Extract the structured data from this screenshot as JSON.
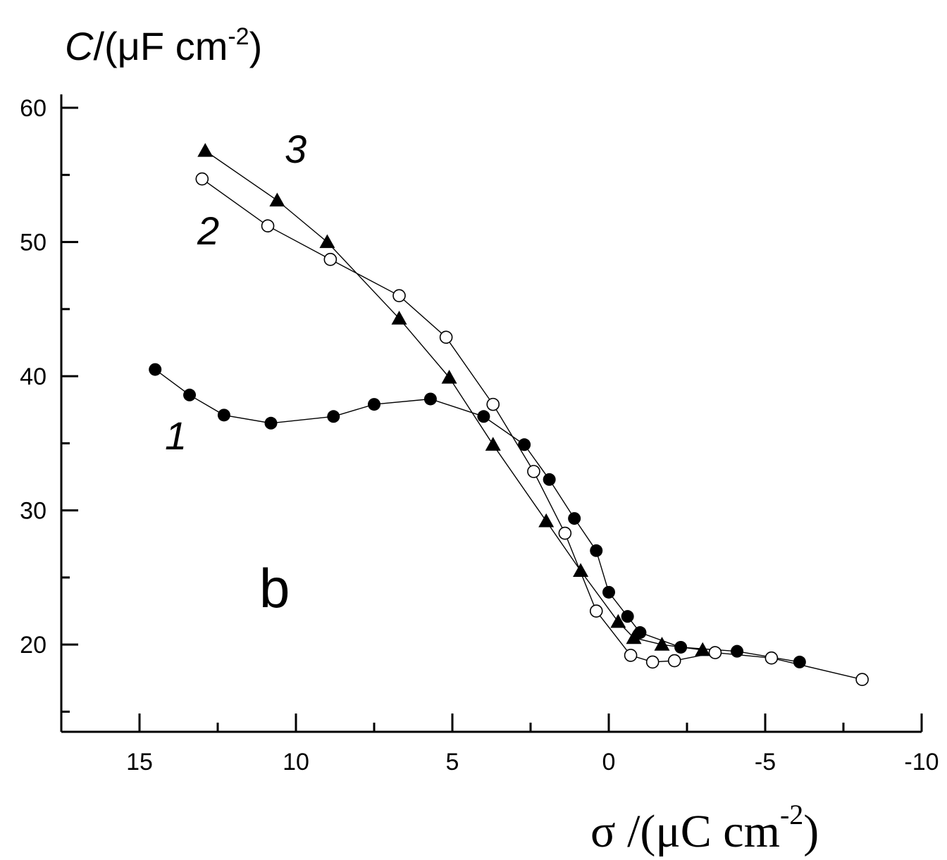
{
  "chart_data": {
    "type": "scatter",
    "ylabel": {
      "var": "C",
      "unit": "/(μF cm",
      "exp": "-2",
      "close": ")"
    },
    "xlabel": {
      "var": "σ",
      "unit": " /(μC cm",
      "exp": "-2",
      "close": ")"
    },
    "panel_label": "b",
    "xlim": [
      17.5,
      -10
    ],
    "ylim": [
      13.5,
      61
    ],
    "x_reversed": true,
    "x_ticks": [
      15,
      10,
      5,
      0,
      -5,
      -10
    ],
    "x_tick_labels": [
      "15",
      "10",
      "5",
      "0",
      "-5",
      "-10"
    ],
    "y_ticks": [
      20,
      30,
      40,
      50,
      60
    ],
    "y_tick_labels": [
      "20",
      "30",
      "40",
      "50",
      "60"
    ],
    "grid": false,
    "series": [
      {
        "name": "1",
        "marker": "filled-circle",
        "x": [
          14.5,
          13.4,
          12.3,
          10.8,
          8.8,
          7.5,
          5.7,
          4.0,
          2.7,
          1.9,
          1.1,
          0.4,
          0.0,
          -0.6,
          -1.0,
          -2.3,
          -4.1,
          -6.1
        ],
        "y": [
          40.5,
          38.6,
          37.1,
          36.5,
          37.0,
          37.9,
          38.3,
          37.0,
          34.9,
          32.3,
          29.4,
          27.0,
          23.9,
          22.1,
          20.9,
          19.8,
          19.5,
          18.7
        ]
      },
      {
        "name": "2",
        "marker": "open-circle",
        "x": [
          13.0,
          10.9,
          8.9,
          6.7,
          5.2,
          3.7,
          2.4,
          1.4,
          0.4,
          -0.7,
          -1.4,
          -2.1,
          -3.4,
          -5.2,
          -8.1
        ],
        "y": [
          54.7,
          51.2,
          48.7,
          46.0,
          42.9,
          37.9,
          32.9,
          28.3,
          22.5,
          19.2,
          18.7,
          18.8,
          19.4,
          19.0,
          17.4
        ]
      },
      {
        "name": "3",
        "marker": "filled-triangle",
        "x": [
          12.9,
          10.6,
          9.0,
          6.7,
          5.1,
          3.7,
          2.0,
          0.9,
          -0.3,
          -0.8,
          -1.7,
          -3.0
        ],
        "y": [
          56.8,
          53.1,
          50.0,
          44.3,
          39.9,
          34.9,
          29.2,
          25.5,
          21.7,
          20.5,
          20.0,
          19.6
        ]
      }
    ]
  }
}
